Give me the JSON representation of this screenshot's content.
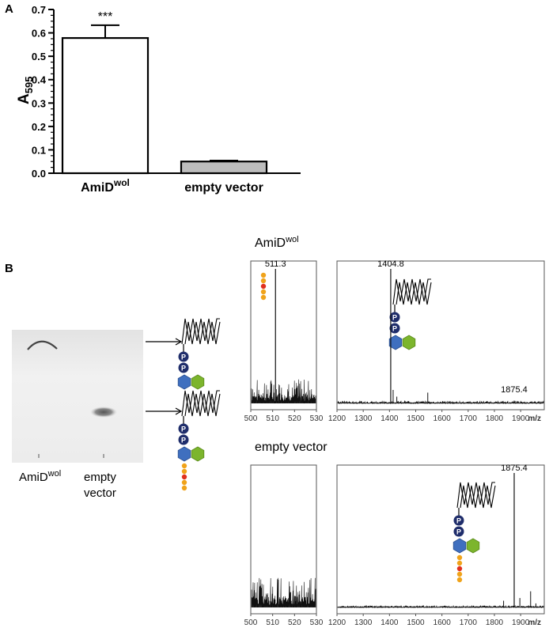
{
  "panels": {
    "a_label": "A",
    "b_label": "B"
  },
  "chart_data": [
    {
      "type": "bar",
      "panel": "A",
      "categories": [
        "AmiD",
        "empty vector"
      ],
      "category_superscripts": [
        "wol",
        ""
      ],
      "values": [
        0.578,
        0.05
      ],
      "error_plus": [
        0.055,
        0.004
      ],
      "bar_fills": [
        "#ffffff",
        "#bdbdbd"
      ],
      "annotations": [
        "***",
        ""
      ],
      "ylabel": "A",
      "ylabel_subscript": "595",
      "ylim": [
        0,
        0.7
      ],
      "yticks": [
        "0.0",
        "0.1",
        "0.2",
        "0.3",
        "0.4",
        "0.5",
        "0.6",
        "0.7"
      ],
      "grid": false
    },
    {
      "type": "line",
      "panel": "B-AmiD-small",
      "group_title": "AmiD",
      "group_title_sup": "wol",
      "xlim": [
        500,
        530
      ],
      "xticks": [
        "500",
        "510",
        "520",
        "530"
      ],
      "peak_labels": [
        {
          "x": 511.3,
          "label": "511.3"
        }
      ],
      "peaks": [
        {
          "x": 511.3,
          "rel": 1.0
        }
      ]
    },
    {
      "type": "line",
      "panel": "B-AmiD-large",
      "xlim": [
        1200,
        1990
      ],
      "xticks": [
        "1200",
        "1300",
        "1400",
        "1500",
        "1600",
        "1700",
        "1800",
        "1900"
      ],
      "x_unit": "m/z",
      "peak_labels": [
        {
          "x": 1404.8,
          "label": "1404.8"
        },
        {
          "x": 1875.4,
          "label": "1875.4"
        }
      ],
      "peaks": [
        {
          "x": 1404.8,
          "rel": 1.0
        },
        {
          "x": 1875.4,
          "rel": 0.02
        }
      ]
    },
    {
      "type": "line",
      "panel": "B-empty-small",
      "group_title": "empty vector",
      "xlim": [
        500,
        530
      ],
      "xticks": [
        "500",
        "510",
        "520",
        "530"
      ],
      "peaks": []
    },
    {
      "type": "line",
      "panel": "B-empty-large",
      "xlim": [
        1200,
        1990
      ],
      "xticks": [
        "1200",
        "1300",
        "1400",
        "1500",
        "1600",
        "1700",
        "1800",
        "1900"
      ],
      "x_unit": "m/z",
      "peak_labels": [
        {
          "x": 1875.4,
          "label": "1875.4"
        }
      ],
      "peaks": [
        {
          "x": 1875.4,
          "rel": 1.0
        }
      ]
    }
  ],
  "tlc": {
    "lane1_label": "AmiD",
    "lane1_sup": "wol",
    "lane2_label_line1": "empty",
    "lane2_label_line2": "vector"
  },
  "glyph_letters": {
    "phosphate": "P"
  }
}
